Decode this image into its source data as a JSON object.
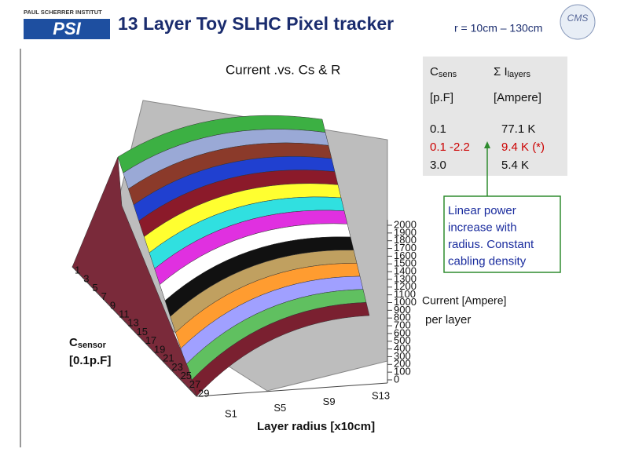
{
  "header": {
    "logo_left_caption": "PAUL SCHERRER INSTITUT",
    "logo_left": "PSI",
    "logo_right": "CMS",
    "title": "13 Layer Toy SLHC Pixel tracker",
    "subtitle": "r = 10cm – 130cm"
  },
  "plot": {
    "title": "Current  .vs. Cs & R",
    "z_ticks": [
      "2000",
      "1900",
      "1800",
      "1700",
      "1600",
      "1500",
      "1400",
      "1300",
      "1200",
      "1100",
      "1000",
      "900",
      "800",
      "700",
      "600",
      "500",
      "400",
      "300",
      "200",
      "100",
      "0"
    ],
    "z_label": "Current [Ampere]",
    "z_label_2": "per layer",
    "cs_ticks": [
      "1",
      "3",
      "5",
      "7",
      "9",
      "11",
      "13",
      "15",
      "17",
      "19",
      "21",
      "23",
      "25",
      "27",
      "29"
    ],
    "cs_label": "C",
    "cs_label_sub": "sensor",
    "cs_unit": "[0.1p.F]",
    "radius_ticks": [
      "S1",
      "S5",
      "S9",
      "S13"
    ],
    "radius_label": "Layer radius [x10cm]"
  },
  "table": {
    "header": [
      {
        "main": "C",
        "sub": "sens"
      },
      {
        "main": "Σ I",
        "sub": "layers"
      }
    ],
    "rows": [
      [
        "[p.F]",
        "[Ampere]"
      ],
      [
        "0.1",
        "77.1 K"
      ],
      [
        "0.1 -2.2",
        "9.4 K  (*)"
      ],
      [
        "3.0",
        "5.4 K"
      ]
    ]
  },
  "note": {
    "lines": [
      "Linear power",
      "increase with",
      "radius. Constant",
      "cabling density"
    ]
  }
}
